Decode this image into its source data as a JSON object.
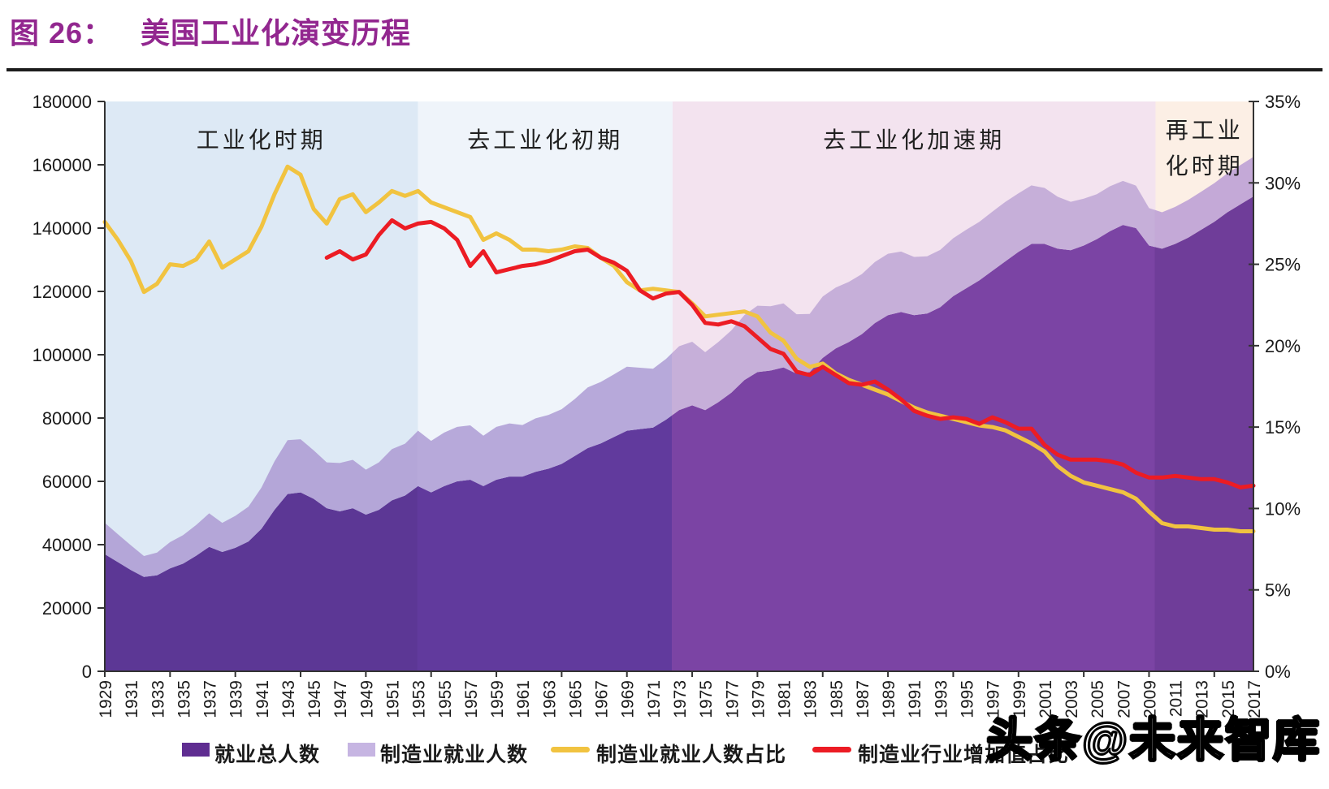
{
  "title_prefix": "图 26：",
  "title_main": "美国工业化演变历程",
  "watermark": "头条@未来智库",
  "colors": {
    "title": "#92278F",
    "axis_text": "#1A1A1A",
    "axis_line": "#333333",
    "region_label_text": "#1F1F1F"
  },
  "legend": {
    "items": [
      {
        "swatch": "square",
        "color": "#5F2D91",
        "label": "就业总人数"
      },
      {
        "swatch": "square",
        "color": "#C6B5E2",
        "label": "制造业就业人数"
      },
      {
        "swatch": "line",
        "color": "#F1C340",
        "label": "制造业就业人数占比"
      },
      {
        "swatch": "line",
        "color": "#EC1C24",
        "label": "制造业行业增加值占比"
      }
    ]
  },
  "chart_data": {
    "type": "combo-area-line",
    "x_start": 1929,
    "x_end": 2017,
    "x_tick_labels": [
      "1929",
      "1931",
      "1933",
      "1935",
      "1937",
      "1939",
      "1941",
      "1943",
      "1945",
      "1947",
      "1949",
      "1951",
      "1953",
      "1955",
      "1957",
      "1959",
      "1961",
      "1963",
      "1965",
      "1967",
      "1969",
      "1971",
      "1973",
      "1975",
      "1977",
      "1979",
      "1981",
      "1983",
      "1985",
      "1987",
      "1989",
      "1991",
      "1993",
      "1995",
      "1997",
      "1999",
      "2001",
      "2003",
      "2005",
      "2007",
      "2009",
      "2011",
      "2013",
      "2015",
      "2017"
    ],
    "left_axis": {
      "min": 0,
      "max": 180000,
      "step": 20000,
      "tick_labels": [
        "0",
        "20000",
        "40000",
        "60000",
        "80000",
        "100000",
        "120000",
        "140000",
        "160000",
        "180000"
      ]
    },
    "right_axis": {
      "min": 0,
      "max": 35,
      "step": 5,
      "tick_labels": [
        "0%",
        "5%",
        "10%",
        "15%",
        "20%",
        "25%",
        "30%",
        "35%"
      ]
    },
    "regions": [
      {
        "label": "工业化时期",
        "label_lines": [
          "工业化时期"
        ],
        "from": 1929,
        "to": 1953,
        "bg": "#DDE9F5",
        "area_dark": "#5C3795",
        "area_light": "#B4A6D8"
      },
      {
        "label": "去工业化初期",
        "label_lines": [
          "去工业化初期"
        ],
        "from": 1953,
        "to": 1972.5,
        "bg": "#EFF4FA",
        "area_dark": "#613A9D",
        "area_light": "#B7A9DA"
      },
      {
        "label": "去工业化加速期",
        "label_lines": [
          "去工业化加速期"
        ],
        "from": 1972.5,
        "to": 2009.5,
        "bg": "#F3E3EF",
        "area_dark": "#7B44A4",
        "area_light": "#C6AFD9"
      },
      {
        "label": "再工业化时期",
        "label_lines": [
          "再工业",
          "化时期"
        ],
        "from": 2009.5,
        "to": 2017,
        "bg": "#FCEFE5",
        "area_dark": "#6F3D99",
        "area_light": "#C4A9D7"
      }
    ],
    "series": [
      {
        "name": "就业总人数",
        "type": "area",
        "axis": "left",
        "start_year": 1929,
        "values": [
          37000,
          34500,
          32000,
          29800,
          30300,
          32500,
          34000,
          36500,
          39300,
          37700,
          39000,
          41000,
          45000,
          51000,
          56000,
          56500,
          54500,
          51500,
          50500,
          51500,
          49500,
          51000,
          54000,
          55500,
          58500,
          56500,
          58500,
          60000,
          60500,
          58500,
          60500,
          61500,
          61500,
          63000,
          64000,
          65500,
          68000,
          70500,
          72000,
          74000,
          76000,
          76500,
          77000,
          79500,
          82500,
          84000,
          82500,
          85000,
          88000,
          92000,
          94500,
          95000,
          96000,
          94000,
          94500,
          99000,
          102000,
          104000,
          106500,
          110000,
          112500,
          113500,
          112500,
          113000,
          115000,
          118500,
          121000,
          123500,
          126500,
          129500,
          132500,
          135000,
          135000,
          133500,
          133000,
          134500,
          136500,
          139000,
          141000,
          140000,
          134500,
          133500,
          135000,
          137000,
          139500,
          142000,
          145000,
          147500,
          150000
        ]
      },
      {
        "name": "制造业就业人数",
        "type": "area-stacked-on-first",
        "axis": "left",
        "start_year": 1929,
        "values": [
          9900,
          8800,
          7800,
          6600,
          7200,
          8300,
          9000,
          9700,
          10600,
          9200,
          10100,
          11000,
          13000,
          15300,
          17000,
          16800,
          15300,
          14500,
          15300,
          15300,
          14200,
          15000,
          16200,
          16400,
          17500,
          16300,
          16900,
          17200,
          17200,
          15900,
          16700,
          16800,
          16300,
          16900,
          17000,
          17300,
          18000,
          19200,
          19400,
          19800,
          20200,
          19400,
          18600,
          19200,
          20200,
          20100,
          18300,
          19000,
          19700,
          20500,
          21000,
          20300,
          20200,
          18800,
          18400,
          19400,
          19200,
          19000,
          19000,
          19300,
          19400,
          19100,
          18400,
          18100,
          18100,
          18300,
          18500,
          18500,
          18700,
          18800,
          18500,
          18500,
          17700,
          16400,
          15300,
          14800,
          14200,
          14200,
          13900,
          13400,
          11800,
          11500,
          11700,
          11900,
          12000,
          12200,
          12300,
          12400,
          12500
        ]
      },
      {
        "name": "制造业就业人数占比",
        "type": "line",
        "axis": "right",
        "color": "#F1C340",
        "start_year": 1929,
        "values": [
          27.6,
          26.5,
          25.2,
          23.3,
          23.8,
          25.0,
          24.9,
          25.3,
          26.4,
          24.8,
          25.3,
          25.8,
          27.3,
          29.3,
          31.0,
          30.5,
          28.4,
          27.5,
          29.0,
          29.3,
          28.2,
          28.8,
          29.5,
          29.2,
          29.5,
          28.8,
          28.5,
          28.2,
          27.9,
          26.5,
          26.9,
          26.5,
          25.9,
          25.9,
          25.8,
          25.9,
          26.1,
          26.0,
          25.4,
          24.9,
          23.9,
          23.4,
          23.5,
          23.4,
          23.3,
          22.6,
          21.8,
          21.9,
          22.0,
          22.1,
          21.8,
          20.8,
          20.3,
          19.2,
          18.7,
          18.9,
          18.3,
          17.9,
          17.6,
          17.3,
          17.0,
          16.6,
          16.2,
          15.9,
          15.7,
          15.5,
          15.3,
          15.1,
          15.0,
          14.8,
          14.4,
          14.0,
          13.5,
          12.6,
          12.0,
          11.6,
          11.4,
          11.2,
          11.0,
          10.6,
          9.8,
          9.1,
          8.9,
          8.9,
          8.8,
          8.7,
          8.7,
          8.6,
          8.6
        ]
      },
      {
        "name": "制造业行业增加值占比",
        "type": "line",
        "axis": "right",
        "color": "#EC1C24",
        "start_year": 1946,
        "values": [
          25.4,
          25.8,
          25.3,
          25.6,
          26.8,
          27.7,
          27.2,
          27.5,
          27.6,
          27.2,
          26.5,
          24.9,
          25.8,
          24.5,
          24.7,
          24.9,
          25.0,
          25.2,
          25.5,
          25.8,
          25.9,
          25.4,
          25.1,
          24.6,
          23.4,
          22.9,
          23.2,
          23.3,
          22.5,
          21.4,
          21.3,
          21.5,
          21.2,
          20.5,
          19.8,
          19.5,
          18.4,
          18.2,
          18.7,
          18.2,
          17.7,
          17.6,
          17.8,
          17.3,
          16.7,
          16.0,
          15.7,
          15.5,
          15.6,
          15.5,
          15.2,
          15.6,
          15.3,
          14.9,
          14.9,
          13.9,
          13.3,
          13.0,
          13.0,
          13.0,
          12.9,
          12.7,
          12.2,
          11.9,
          11.9,
          12.0,
          11.9,
          11.8,
          11.8,
          11.6,
          11.3,
          11.4
        ]
      }
    ]
  }
}
